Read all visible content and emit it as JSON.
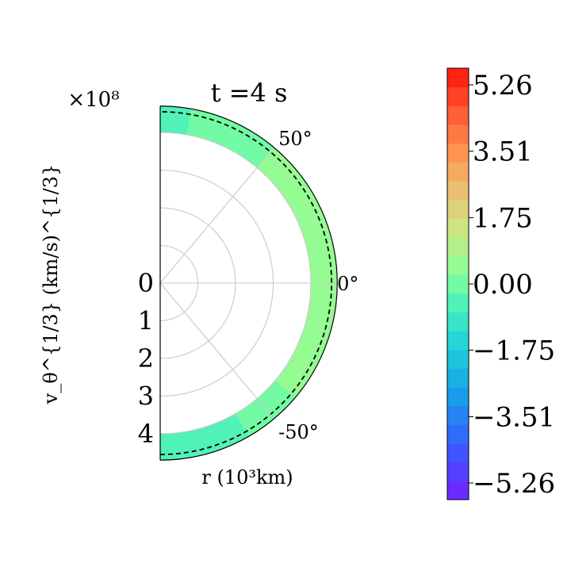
{
  "chart_data": {
    "type": "heatmap",
    "title": "t =4 s",
    "projection": "polar-half",
    "theta_range_deg": [
      -90,
      90
    ],
    "angle_ticks": [
      "50°",
      "0°",
      "-50°"
    ],
    "r_tick_labels": [
      "0",
      "1",
      "2",
      "3",
      "4"
    ],
    "r_range": [
      0,
      4.7
    ],
    "xlabel": "r (10³km)",
    "ylabel": "v_θ^{1/3} (km/s)^{1/3}",
    "multiplier": "×10⁸",
    "shell": {
      "r_inner": 4.0,
      "r_outer": 4.7,
      "dashed_contour_r": 4.55,
      "theta_deg": [
        -90,
        -80,
        -70,
        -60,
        -50,
        -40,
        -30,
        -20,
        -10,
        0,
        10,
        20,
        30,
        40,
        50,
        60,
        70,
        80,
        90
      ],
      "values": [
        -0.7,
        -0.3,
        -0.5,
        -0.2,
        0.1,
        0.2,
        0.3,
        0.5,
        0.4,
        0.2,
        0.4,
        0.6,
        0.5,
        0.3,
        0.5,
        -0.4,
        0.2,
        -0.5,
        -0.6
      ]
    },
    "colorbar": {
      "min": -5.7,
      "max": 5.7,
      "levels": 23,
      "colormap": "rainbow",
      "ticks": [
        5.26,
        3.51,
        1.75,
        0.0,
        -1.75,
        -3.51,
        -5.26
      ],
      "tick_labels": [
        "5.26",
        "3.51",
        "1.75",
        "0.00",
        "−1.75",
        "−3.51",
        "−5.26"
      ]
    },
    "grid": true
  }
}
